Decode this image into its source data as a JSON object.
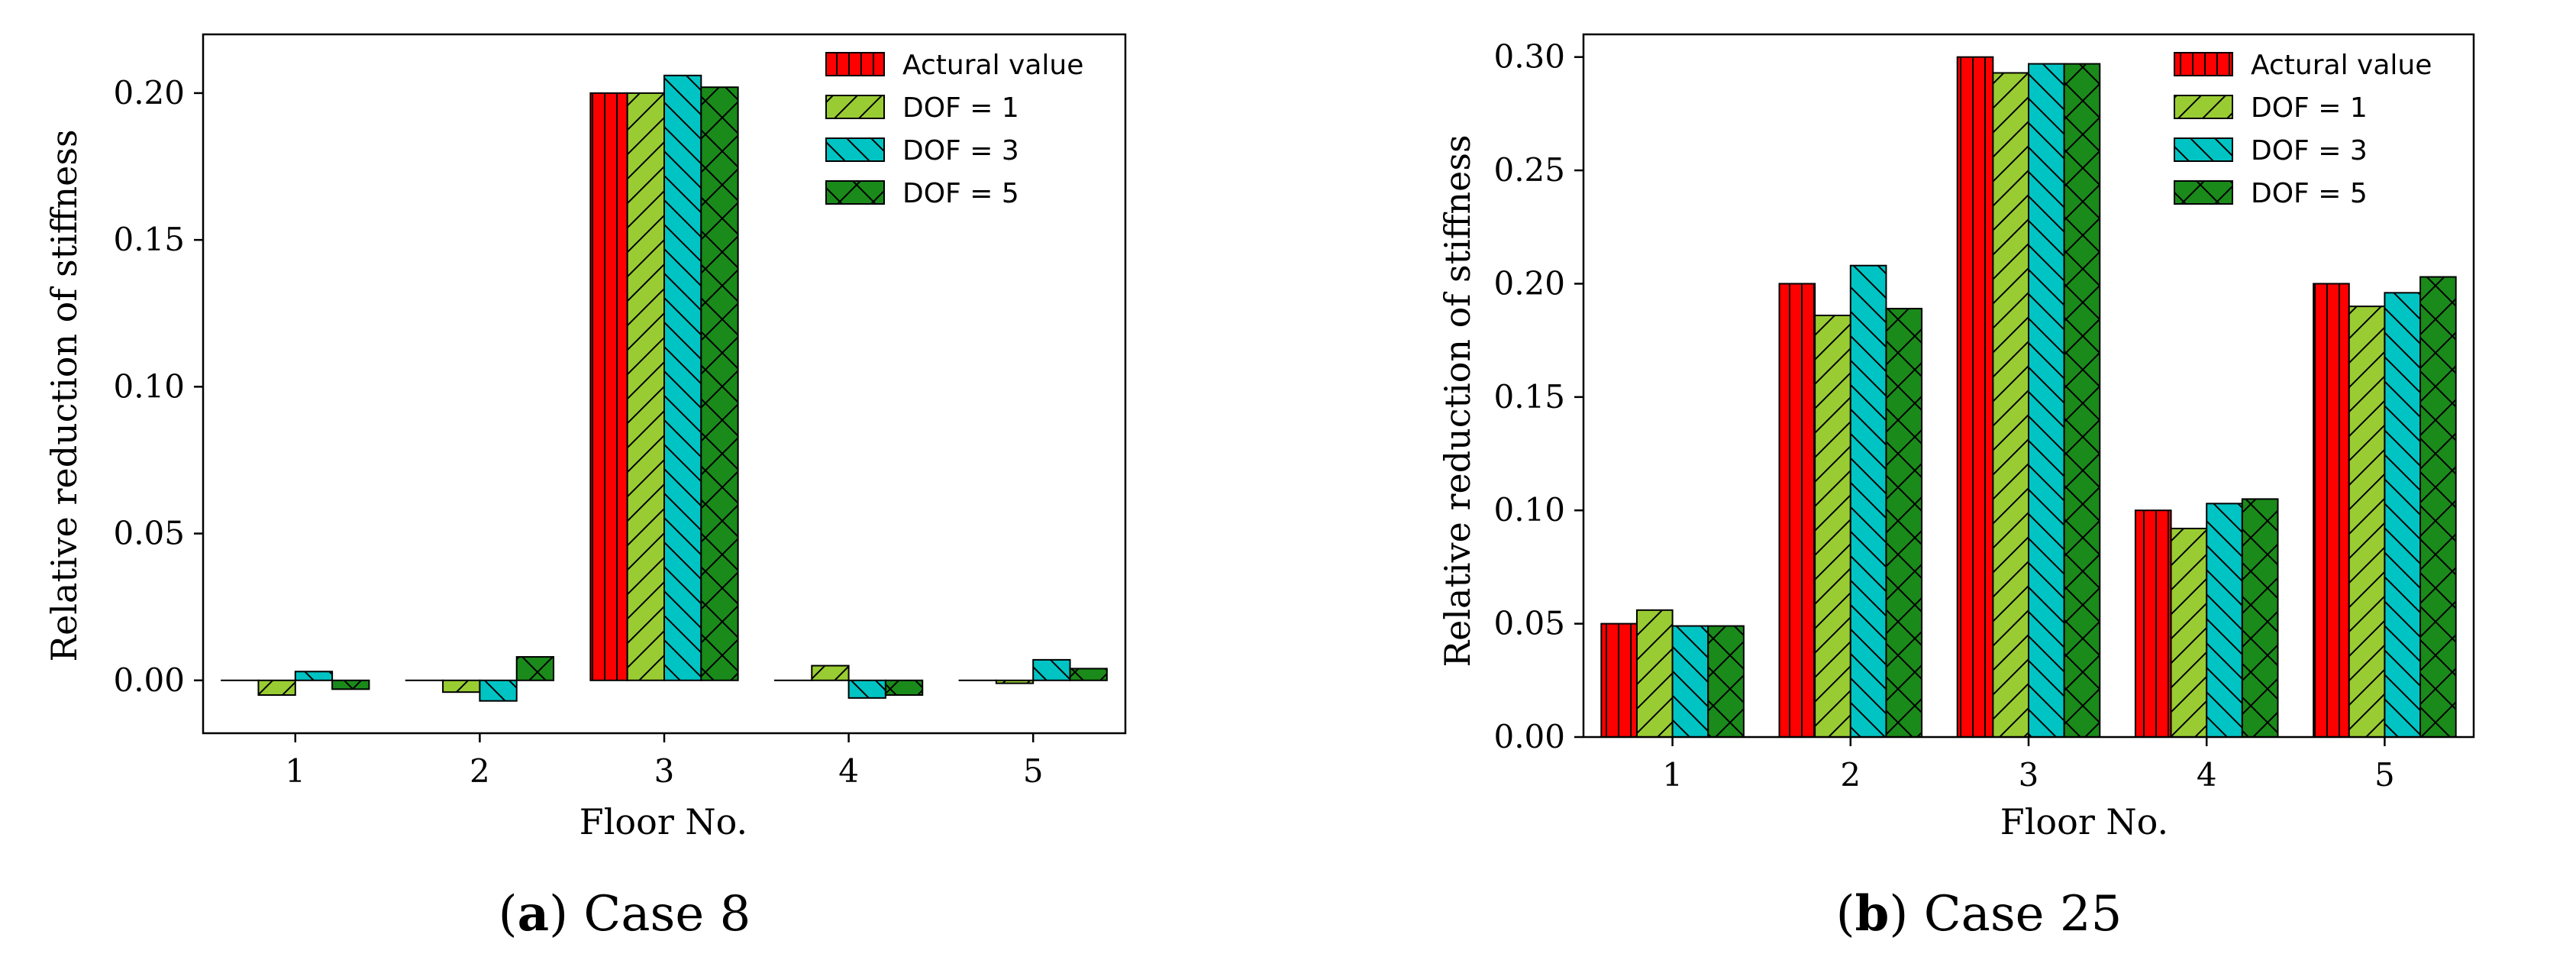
{
  "colors": {
    "Actural value": "#ff0000",
    "DOF = 1": "#99cc33",
    "DOF = 3": "#00c4c4",
    "DOF = 5": "#1a8a1a"
  },
  "chart_data": [
    {
      "type": "bar",
      "caption_letter": "a",
      "caption_text": "Case 8",
      "xlabel": "Floor No.",
      "ylabel": "Relative reduction of stiffness",
      "categories": [
        "1",
        "2",
        "3",
        "4",
        "5"
      ],
      "ylim": [
        -0.018,
        0.22
      ],
      "yticks": [
        0.0,
        0.05,
        0.1,
        0.15,
        0.2
      ],
      "ytick_labels": [
        "0.00",
        "0.05",
        "0.10",
        "0.15",
        "0.20"
      ],
      "legend_position": "top-right",
      "series": [
        {
          "name": "Actural value",
          "values": [
            0.0,
            0.0,
            0.2,
            0.0,
            0.0
          ]
        },
        {
          "name": "DOF = 1",
          "values": [
            -0.005,
            -0.004,
            0.2,
            0.005,
            -0.001
          ]
        },
        {
          "name": "DOF = 3",
          "values": [
            0.003,
            -0.007,
            0.206,
            -0.006,
            0.007
          ]
        },
        {
          "name": "DOF = 5",
          "values": [
            -0.003,
            0.008,
            0.202,
            -0.005,
            0.004
          ]
        }
      ]
    },
    {
      "type": "bar",
      "caption_letter": "b",
      "caption_text": "Case 25",
      "xlabel": "Floor No.",
      "ylabel": "Relative reduction of stiffness",
      "categories": [
        "1",
        "2",
        "3",
        "4",
        "5"
      ],
      "ylim": [
        0.0,
        0.31
      ],
      "yticks": [
        0.0,
        0.05,
        0.1,
        0.15,
        0.2,
        0.25,
        0.3
      ],
      "ytick_labels": [
        "0.00",
        "0.05",
        "0.10",
        "0.15",
        "0.20",
        "0.25",
        "0.30"
      ],
      "legend_position": "top-right",
      "series": [
        {
          "name": "Actural value",
          "values": [
            0.05,
            0.2,
            0.3,
            0.1,
            0.2
          ]
        },
        {
          "name": "DOF = 1",
          "values": [
            0.056,
            0.186,
            0.293,
            0.092,
            0.19
          ]
        },
        {
          "name": "DOF = 3",
          "values": [
            0.049,
            0.208,
            0.297,
            0.103,
            0.196
          ]
        },
        {
          "name": "DOF = 5",
          "values": [
            0.049,
            0.189,
            0.297,
            0.105,
            0.203
          ]
        }
      ]
    }
  ]
}
